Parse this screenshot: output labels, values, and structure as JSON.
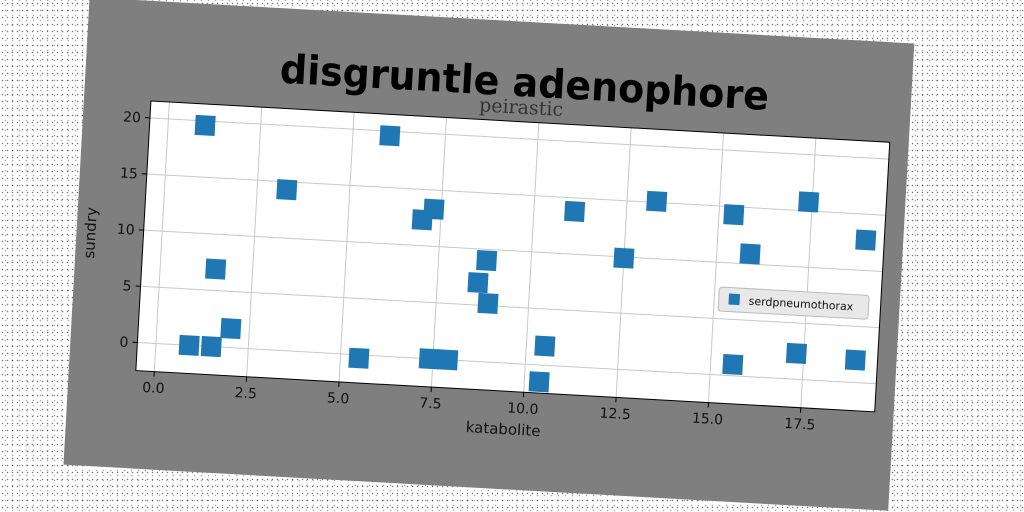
{
  "figure": {
    "suptitle": "disgruntle adenophore",
    "colors": {
      "frame": "#7f7f7f",
      "marker": "#1f77b4",
      "grid": "#c8c8c8",
      "legend_bg": "#e8e8e8"
    }
  },
  "chart_data": {
    "type": "scatter",
    "title": "peirastic",
    "xlabel": "katabolite",
    "ylabel": "sundry",
    "xlim": [
      -0.5,
      19.5
    ],
    "ylim": [
      -2.5,
      21.5
    ],
    "xticks": [
      "0.0",
      "2.5",
      "5.0",
      "7.5",
      "10.0",
      "12.5",
      "15.0",
      "17.5"
    ],
    "yticks": [
      "0",
      "5",
      "10",
      "15",
      "20"
    ],
    "grid": true,
    "legend_position": "center-right",
    "series": [
      {
        "name": "serdpneumothorax",
        "marker": "square",
        "points": [
          [
            1.0,
            19.6
          ],
          [
            6.0,
            19.6
          ],
          [
            3.3,
            14.3
          ],
          [
            7.0,
            12.3
          ],
          [
            7.3,
            13.3
          ],
          [
            11.1,
            13.8
          ],
          [
            13.3,
            15.1
          ],
          [
            15.4,
            14.3
          ],
          [
            17.4,
            15.8
          ],
          [
            19.0,
            12.7
          ],
          [
            12.5,
            9.9
          ],
          [
            15.9,
            10.9
          ],
          [
            8.8,
            9.0
          ],
          [
            8.6,
            7.0
          ],
          [
            8.9,
            5.2
          ],
          [
            1.5,
            6.9
          ],
          [
            0.9,
            0.0
          ],
          [
            1.5,
            0.0
          ],
          [
            2.0,
            1.7
          ],
          [
            5.5,
            -0.3
          ],
          [
            7.4,
            0.0
          ],
          [
            7.9,
            0.0
          ],
          [
            10.5,
            1.7
          ],
          [
            10.4,
            -1.5
          ],
          [
            15.6,
            1.0
          ],
          [
            17.3,
            2.3
          ],
          [
            18.9,
            2.0
          ]
        ]
      }
    ]
  }
}
